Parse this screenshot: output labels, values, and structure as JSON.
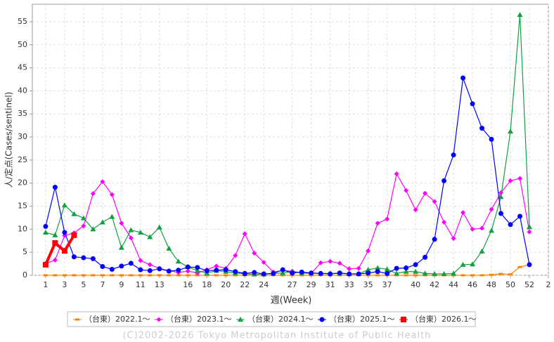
{
  "chart_data": {
    "type": "line",
    "x_label": "週(Week)",
    "y_label": "人/定点(Cases/sentinel)",
    "footer": "(C)2002-2026 Tokyo Metropolitan Institute of Public Health",
    "x": [
      1,
      2,
      3,
      4,
      5,
      6,
      7,
      8,
      9,
      10,
      11,
      12,
      13,
      14,
      15,
      16,
      17,
      18,
      19,
      20,
      21,
      22,
      23,
      24,
      25,
      26,
      27,
      28,
      29,
      30,
      31,
      32,
      33,
      34,
      35,
      36,
      37,
      38,
      39,
      40,
      41,
      42,
      43,
      44,
      45,
      46,
      47,
      48,
      49,
      50,
      51,
      52
    ],
    "xlim": [
      -0.4,
      54
    ],
    "ylim": [
      0,
      58.8
    ],
    "xticks": [
      1,
      3,
      5,
      7,
      9,
      11,
      13,
      16,
      18,
      20,
      22,
      24,
      27,
      29,
      31,
      33,
      35,
      37,
      40,
      42,
      44,
      46,
      48,
      50,
      52,
      {
        "value": 54,
        "label": "2"
      }
    ],
    "yticks": [
      0,
      5,
      10,
      15,
      20,
      25,
      30,
      35,
      40,
      45,
      50,
      55
    ],
    "grid": true,
    "legend": "bottom",
    "series": [
      {
        "name": "（台東）2022.1～",
        "color": "#ff8000",
        "marker": "dash",
        "values": [
          0,
          0,
          0,
          0,
          0,
          0,
          0,
          0,
          0,
          0,
          0,
          0,
          0,
          0,
          0,
          0,
          0,
          0,
          0,
          0,
          0,
          0,
          0,
          0,
          0,
          0,
          0,
          0,
          0,
          0,
          0,
          0,
          0,
          0,
          0,
          0,
          0,
          0,
          0,
          0,
          0,
          0,
          0,
          0,
          0,
          0,
          0,
          0.1,
          0.3,
          0.2,
          1.8,
          2.3
        ]
      },
      {
        "name": "（台東）2023.1～",
        "color": "#ff00ff",
        "marker": "diamond",
        "values": [
          2.5,
          3.3,
          8.6,
          9.2,
          10.7,
          17.7,
          20.3,
          17.5,
          11.3,
          8.1,
          3.2,
          2.3,
          1.5,
          1.0,
          0.6,
          0.9,
          0.5,
          1.2,
          2.0,
          1.5,
          4.3,
          9.0,
          4.8,
          2.8,
          0.7,
          1.0,
          0.9,
          0.5,
          0.4,
          2.7,
          3.0,
          2.6,
          1.4,
          1.5,
          5.3,
          11.3,
          12.2,
          22.0,
          18.4,
          14.2,
          17.8,
          16.0,
          11.5,
          8.0,
          13.6,
          10.0,
          10.2,
          14.3,
          17.9,
          20.5,
          21.0,
          9.4
        ]
      },
      {
        "name": "（台東）2024.1～",
        "color": "#10a040",
        "marker": "triangle",
        "values": [
          9.3,
          8.7,
          15.2,
          13.3,
          12.4,
          10.0,
          11.5,
          12.7,
          6.0,
          9.8,
          9.3,
          8.3,
          10.4,
          5.8,
          3.0,
          1.8,
          1.0,
          0.5,
          1.0,
          0.8,
          0.5,
          0.3,
          0.2,
          0.2,
          0.4,
          0.5,
          0.8,
          0.5,
          0.5,
          0.4,
          0.4,
          0.4,
          0.3,
          0.3,
          1.2,
          1.6,
          1.3,
          0.4,
          0.8,
          0.8,
          0.4,
          0.3,
          0.3,
          0.4,
          2.3,
          2.4,
          5.2,
          9.7,
          17.0,
          31.2,
          56.5,
          10.5
        ]
      },
      {
        "name": "（台東）2025.1～",
        "color": "#0000ff",
        "marker": "circle",
        "values": [
          10.6,
          19.1,
          9.3,
          4.0,
          3.8,
          3.6,
          1.9,
          1.3,
          2.0,
          2.6,
          1.2,
          1.0,
          1.4,
          0.9,
          1.1,
          1.8,
          1.7,
          1.0,
          1.1,
          1.2,
          0.8,
          0.4,
          0.6,
          0.3,
          0.4,
          1.2,
          0.5,
          0.7,
          0.5,
          0.4,
          0.3,
          0.5,
          0.3,
          0.3,
          0.5,
          0.8,
          0.4,
          1.5,
          1.6,
          2.3,
          3.9,
          7.8,
          20.5,
          26.1,
          42.8,
          37.2,
          31.9,
          29.5,
          13.4,
          11.0,
          12.8,
          2.3
        ]
      },
      {
        "name": "（台東）2026.1～",
        "color": "#ff0000",
        "marker": "square",
        "values": [
          2.3,
          7.0,
          5.3,
          8.7,
          null,
          null,
          null,
          null,
          null,
          null,
          null,
          null,
          null,
          null,
          null,
          null,
          null,
          null,
          null,
          null,
          null,
          null,
          null,
          null,
          null,
          null,
          null,
          null,
          null,
          null,
          null,
          null,
          null,
          null,
          null,
          null,
          null,
          null,
          null,
          null,
          null,
          null,
          null,
          null,
          null,
          null,
          null,
          null,
          null,
          null,
          null,
          null
        ]
      }
    ]
  }
}
